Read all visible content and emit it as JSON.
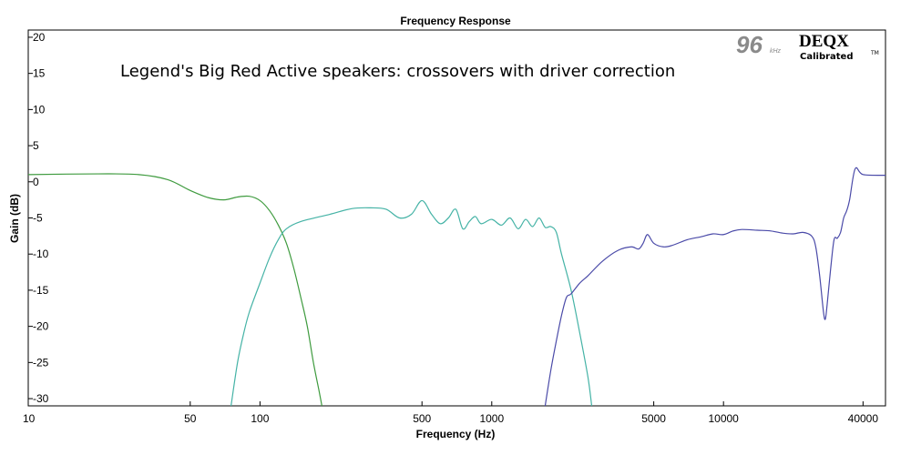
{
  "chart_data": {
    "type": "line",
    "title": "Frequency Response",
    "subtitle": "Legend's Big Red Active speakers: crossovers with driver correction",
    "xlabel": "Frequency (Hz)",
    "ylabel": "Gain (dB)",
    "x_scale": "log",
    "xlim": [
      10,
      50000
    ],
    "ylim": [
      -31,
      21
    ],
    "x_ticks": [
      10,
      50,
      100,
      500,
      1000,
      5000,
      10000,
      40000
    ],
    "x_tick_labels": [
      "10",
      "50",
      "100",
      "500",
      "1000",
      "5000",
      "10000",
      "40000"
    ],
    "y_ticks": [
      20,
      15,
      10,
      5,
      0,
      -5,
      -10,
      -15,
      -20,
      -25,
      -30
    ],
    "y_tick_labels": [
      "20",
      "15",
      "10",
      "5",
      "0",
      "-5",
      "-10",
      "-15",
      "-20",
      "-25",
      "-30"
    ],
    "grid": false,
    "legend": "none",
    "series": [
      {
        "color": "#3f9b3f",
        "points": [
          [
            10,
            1.0
          ],
          [
            20,
            1.1
          ],
          [
            30,
            1.0
          ],
          [
            40,
            0.3
          ],
          [
            50,
            -1.2
          ],
          [
            60,
            -2.2
          ],
          [
            70,
            -2.5
          ],
          [
            80,
            -2.1
          ],
          [
            90,
            -2.0
          ],
          [
            100,
            -2.6
          ],
          [
            110,
            -4.0
          ],
          [
            120,
            -6.0
          ],
          [
            130,
            -8.5
          ],
          [
            140,
            -12.0
          ],
          [
            150,
            -16.0
          ],
          [
            160,
            -20.0
          ],
          [
            170,
            -25.0
          ],
          [
            180,
            -29.0
          ],
          [
            185,
            -31.0
          ]
        ]
      },
      {
        "color": "#45b3a6",
        "points": [
          [
            75,
            -31.0
          ],
          [
            80,
            -25.0
          ],
          [
            85,
            -21.0
          ],
          [
            90,
            -18.0
          ],
          [
            100,
            -14.0
          ],
          [
            110,
            -10.5
          ],
          [
            120,
            -8.0
          ],
          [
            130,
            -6.5
          ],
          [
            150,
            -5.5
          ],
          [
            200,
            -4.5
          ],
          [
            250,
            -3.7
          ],
          [
            300,
            -3.6
          ],
          [
            350,
            -3.8
          ],
          [
            400,
            -5.0
          ],
          [
            450,
            -4.5
          ],
          [
            500,
            -2.6
          ],
          [
            550,
            -4.5
          ],
          [
            600,
            -5.8
          ],
          [
            650,
            -5.0
          ],
          [
            700,
            -3.8
          ],
          [
            750,
            -6.5
          ],
          [
            800,
            -5.5
          ],
          [
            850,
            -4.8
          ],
          [
            900,
            -5.8
          ],
          [
            1000,
            -5.2
          ],
          [
            1100,
            -6.0
          ],
          [
            1200,
            -5.0
          ],
          [
            1300,
            -6.5
          ],
          [
            1400,
            -5.2
          ],
          [
            1500,
            -6.2
          ],
          [
            1600,
            -5.0
          ],
          [
            1700,
            -6.3
          ],
          [
            1800,
            -6.2
          ],
          [
            1900,
            -7.0
          ],
          [
            2000,
            -10.0
          ],
          [
            2200,
            -15.0
          ],
          [
            2400,
            -21.0
          ],
          [
            2600,
            -27.0
          ],
          [
            2700,
            -31.0
          ]
        ]
      },
      {
        "color": "#4a4aa8",
        "points": [
          [
            1700,
            -31.0
          ],
          [
            1800,
            -26.0
          ],
          [
            1900,
            -22.0
          ],
          [
            2000,
            -18.5
          ],
          [
            2100,
            -16.0
          ],
          [
            2200,
            -15.5
          ],
          [
            2400,
            -14.0
          ],
          [
            2600,
            -13.0
          ],
          [
            3000,
            -11.0
          ],
          [
            3500,
            -9.5
          ],
          [
            4000,
            -9.0
          ],
          [
            4300,
            -9.3
          ],
          [
            4500,
            -8.5
          ],
          [
            4700,
            -7.3
          ],
          [
            5000,
            -8.5
          ],
          [
            5500,
            -9.0
          ],
          [
            6000,
            -8.8
          ],
          [
            7000,
            -8.0
          ],
          [
            8000,
            -7.6
          ],
          [
            9000,
            -7.2
          ],
          [
            10000,
            -7.3
          ],
          [
            11000,
            -6.8
          ],
          [
            12000,
            -6.6
          ],
          [
            14000,
            -6.7
          ],
          [
            16000,
            -6.8
          ],
          [
            18000,
            -7.1
          ],
          [
            20000,
            -7.2
          ],
          [
            22000,
            -7.0
          ],
          [
            24000,
            -7.5
          ],
          [
            25000,
            -9.0
          ],
          [
            26000,
            -13.0
          ],
          [
            27000,
            -18.0
          ],
          [
            27500,
            -19.0
          ],
          [
            28000,
            -17.0
          ],
          [
            29000,
            -12.0
          ],
          [
            30000,
            -8.0
          ],
          [
            31000,
            -7.8
          ],
          [
            32000,
            -7.0
          ],
          [
            33000,
            -5.0
          ],
          [
            34000,
            -4.0
          ],
          [
            35000,
            -2.5
          ],
          [
            37000,
            1.8
          ],
          [
            40000,
            1.0
          ],
          [
            50000,
            0.9
          ]
        ]
      }
    ]
  },
  "logo": {
    "rate": "96",
    "rate_unit": "kHz",
    "brand": "DEQX",
    "tagline": "Calibrated",
    "trademark": "TM"
  }
}
